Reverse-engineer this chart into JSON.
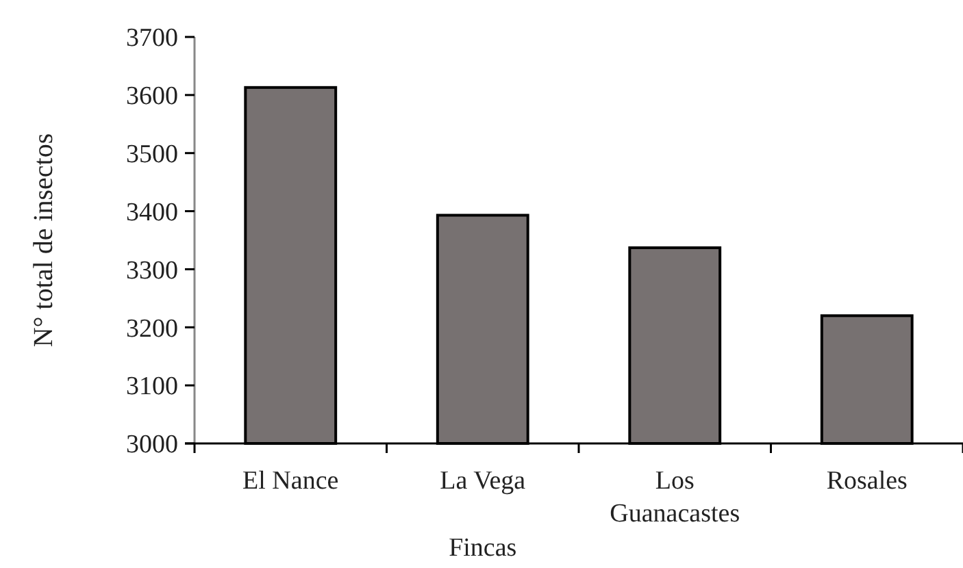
{
  "chart_data": {
    "type": "bar",
    "xlabel": "Fincas",
    "ylabel": "N° total de insectos",
    "categories": [
      "El Nance",
      "La Vega",
      "Los Guanacastes",
      "Rosales"
    ],
    "values": [
      3613,
      3393,
      3337,
      3220
    ],
    "color": "#777171",
    "ylim": [
      3000,
      3700
    ],
    "yticks": [
      3000,
      3100,
      3200,
      3300,
      3400,
      3500,
      3600,
      3700
    ],
    "grid": false
  }
}
